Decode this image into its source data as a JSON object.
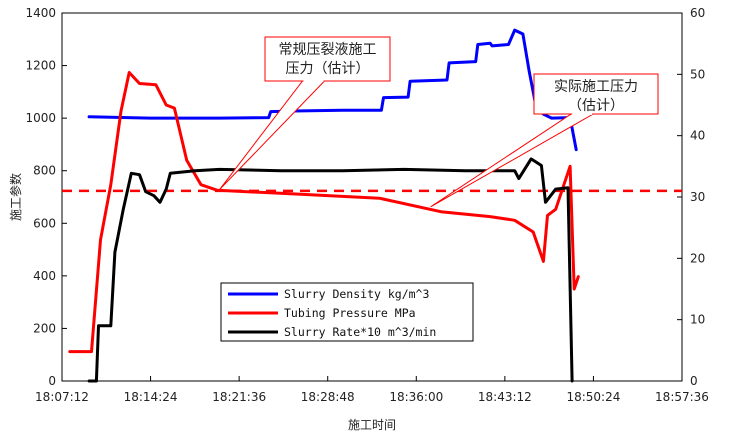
{
  "chart_data": {
    "type": "line",
    "title": "",
    "xlabel": "施工时间",
    "ylabel": "施工参数",
    "x_ticks": [
      "18:07:12",
      "18:14:24",
      "18:21:36",
      "18:28:48",
      "18:36:00",
      "18:43:12",
      "18:50:24",
      "18:57:36"
    ],
    "x_range": [
      "18:07:12",
      "18:57:36"
    ],
    "y_left_ticks": [
      "0",
      "200",
      "400",
      "600",
      "800",
      "1000",
      "1200",
      "1400"
    ],
    "y_left_range": [
      0,
      1400
    ],
    "y_right_ticks": [
      "0",
      "10",
      "20",
      "30",
      "40",
      "50",
      "60"
    ],
    "y_right_range": [
      0,
      60
    ],
    "grid": false,
    "legend_position": "lower-center",
    "series": [
      {
        "name": "Slurry Density kg/m^3",
        "color": "#0000ff",
        "axis": "left",
        "points": [
          [
            "18:09:24",
            1005
          ],
          [
            "18:14:24",
            1000
          ],
          [
            "18:20:00",
            1000
          ],
          [
            "18:24:00",
            1002
          ],
          [
            "18:24:10",
            1025
          ],
          [
            "18:26:00",
            1027
          ],
          [
            "18:30:00",
            1030
          ],
          [
            "18:33:10",
            1030
          ],
          [
            "18:33:20",
            1078
          ],
          [
            "18:35:20",
            1080
          ],
          [
            "18:35:30",
            1140
          ],
          [
            "18:38:30",
            1145
          ],
          [
            "18:38:40",
            1210
          ],
          [
            "18:40:50",
            1215
          ],
          [
            "18:41:00",
            1280
          ],
          [
            "18:42:00",
            1285
          ],
          [
            "18:42:10",
            1275
          ],
          [
            "18:43:30",
            1280
          ],
          [
            "18:44:00",
            1335
          ],
          [
            "18:44:40",
            1320
          ],
          [
            "18:45:10",
            1180
          ],
          [
            "18:45:40",
            1060
          ],
          [
            "18:46:20",
            1015
          ],
          [
            "18:47:00",
            1000
          ],
          [
            "18:48:30",
            1002
          ],
          [
            "18:49:00",
            880
          ]
        ]
      },
      {
        "name": "Tubing Pressure MPa",
        "color": "#ff0000",
        "axis": "right",
        "points": [
          [
            "18:07:50",
            4.8
          ],
          [
            "18:09:36",
            4.8
          ],
          [
            "18:10:20",
            23
          ],
          [
            "18:11:10",
            32
          ],
          [
            "18:12:00",
            44
          ],
          [
            "18:12:40",
            50.3
          ],
          [
            "18:13:30",
            48.5
          ],
          [
            "18:14:50",
            48.3
          ],
          [
            "18:15:40",
            45
          ],
          [
            "18:16:20",
            44.5
          ],
          [
            "18:17:20",
            36
          ],
          [
            "18:18:30",
            32
          ],
          [
            "18:19:50",
            31.1
          ],
          [
            "18:26:00",
            30.5
          ],
          [
            "18:33:00",
            29.8
          ],
          [
            "18:38:00",
            27.6
          ],
          [
            "18:42:00",
            26.8
          ],
          [
            "18:44:00",
            26.2
          ],
          [
            "18:45:30",
            24.3
          ],
          [
            "18:46:20",
            19.5
          ],
          [
            "18:46:40",
            27
          ],
          [
            "18:47:20",
            28
          ],
          [
            "18:48:00",
            32
          ],
          [
            "18:48:30",
            35
          ],
          [
            "18:48:50",
            15
          ],
          [
            "18:49:10",
            17
          ]
        ]
      },
      {
        "name": "Slurry Rate*10 m^3/min",
        "color": "#000000",
        "axis": "left",
        "points": [
          [
            "18:09:24",
            0
          ],
          [
            "18:10:00",
            0
          ],
          [
            "18:10:10",
            210
          ],
          [
            "18:11:10",
            210
          ],
          [
            "18:11:30",
            490
          ],
          [
            "18:12:10",
            650
          ],
          [
            "18:12:50",
            790
          ],
          [
            "18:13:30",
            785
          ],
          [
            "18:14:00",
            720
          ],
          [
            "18:14:40",
            705
          ],
          [
            "18:15:10",
            680
          ],
          [
            "18:15:40",
            730
          ],
          [
            "18:16:00",
            790
          ],
          [
            "18:18:00",
            800
          ],
          [
            "18:20:00",
            805
          ],
          [
            "18:25:00",
            800
          ],
          [
            "18:30:00",
            800
          ],
          [
            "18:35:00",
            805
          ],
          [
            "18:40:00",
            800
          ],
          [
            "18:44:00",
            800
          ],
          [
            "18:44:20",
            770
          ],
          [
            "18:45:20",
            845
          ],
          [
            "18:46:10",
            820
          ],
          [
            "18:46:30",
            680
          ],
          [
            "18:47:20",
            730
          ],
          [
            "18:48:20",
            735
          ],
          [
            "18:48:40",
            0
          ]
        ]
      }
    ],
    "reference_line": {
      "value": 31,
      "axis": "right",
      "style": "dashed",
      "color": "#ff0000"
    },
    "annotations": [
      {
        "text": "常规压裂液施工压力（估计）",
        "line1": "常规压裂液施工",
        "line2": "压力（估计）",
        "target": [
          "18:20:00",
          31.2
        ]
      },
      {
        "text": "实际施工压力（估计）",
        "line1": "实际施工压力",
        "line2": "（估计）",
        "target": [
          "18:37:10",
          28.4
        ]
      }
    ]
  }
}
